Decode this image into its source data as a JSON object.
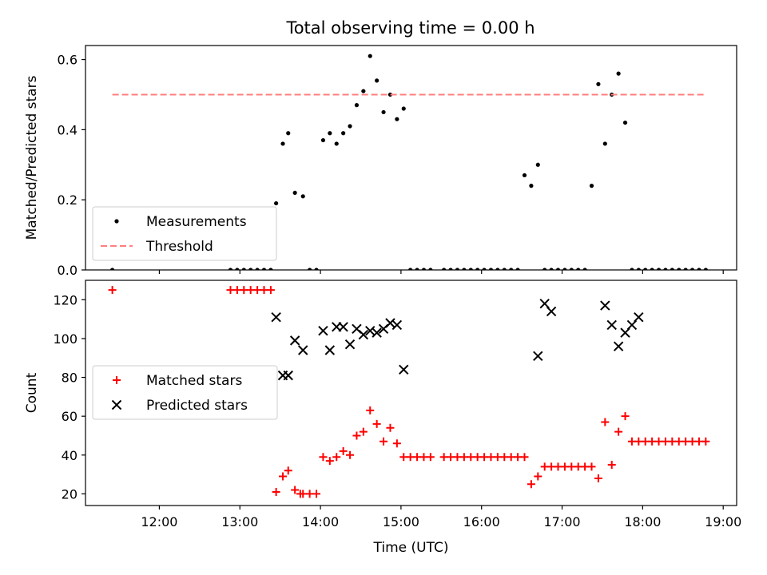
{
  "figure": {
    "title": "Total observing time = 0.00 h"
  },
  "chart_data": [
    {
      "type": "scatter",
      "title": "Total observing time = 0.00 h",
      "xlabel": "",
      "ylabel": "Matched/Predicted stars",
      "xlim": [
        "11:05",
        "19:10"
      ],
      "ylim": [
        0,
        0.64
      ],
      "yticks": [
        0.0,
        0.2,
        0.4,
        0.6
      ],
      "ytick_labels": [
        "0.0",
        "0.2",
        "0.4",
        "0.6"
      ],
      "grid": false,
      "legend_position": "lower-left",
      "series": [
        {
          "name": "Measurements",
          "kind": "scatter",
          "color": "#000000",
          "x": [
            "11:25",
            "12:53",
            "12:58",
            "13:03",
            "13:08",
            "13:13",
            "13:18",
            "13:23",
            "13:27",
            "13:32",
            "13:36",
            "13:41",
            "13:47",
            "13:52",
            "13:57",
            "14:02",
            "14:07",
            "14:12",
            "14:17",
            "14:22",
            "14:27",
            "14:32",
            "14:37",
            "14:42",
            "14:47",
            "14:52",
            "14:57",
            "15:02",
            "15:07",
            "15:12",
            "15:17",
            "15:22",
            "15:32",
            "15:37",
            "15:42",
            "15:47",
            "15:52",
            "15:57",
            "16:02",
            "16:07",
            "16:12",
            "16:17",
            "16:22",
            "16:27",
            "16:32",
            "16:37",
            "16:42",
            "16:47",
            "16:52",
            "16:57",
            "17:02",
            "17:07",
            "17:12",
            "17:17",
            "17:22",
            "17:27",
            "17:32",
            "17:37",
            "17:42",
            "17:47",
            "17:52",
            "17:57",
            "18:02",
            "18:07",
            "18:12",
            "18:17",
            "18:22",
            "18:27",
            "18:32",
            "18:37",
            "18:42",
            "18:47"
          ],
          "y": [
            0.0,
            0.0,
            0.0,
            0.0,
            0.0,
            0.0,
            0.0,
            0.0,
            0.19,
            0.36,
            0.39,
            0.22,
            0.21,
            0.0,
            0.0,
            0.37,
            0.39,
            0.36,
            0.39,
            0.41,
            0.47,
            0.51,
            0.61,
            0.54,
            0.45,
            0.5,
            0.43,
            0.46,
            0.0,
            0.0,
            0.0,
            0.0,
            0.0,
            0.0,
            0.0,
            0.0,
            0.0,
            0.0,
            0.0,
            0.0,
            0.0,
            0.0,
            0.0,
            0.0,
            0.27,
            0.24,
            0.3,
            0.0,
            0.0,
            0.0,
            0.0,
            0.0,
            0.0,
            0.0,
            0.24,
            0.53,
            0.36,
            0.5,
            0.56,
            0.42,
            0.0,
            0.0,
            0.0,
            0.0,
            0.0,
            0.0,
            0.0,
            0.0,
            0.0,
            0.0,
            0.0,
            0.0
          ]
        },
        {
          "name": "Threshold",
          "kind": "line",
          "style": "dashed",
          "color": "#ff7f7f",
          "x": [
            "11:25",
            "18:47"
          ],
          "y": [
            0.5,
            0.5
          ]
        }
      ]
    },
    {
      "type": "scatter",
      "xlabel": "Time (UTC)",
      "ylabel": "Count",
      "xlim": [
        "11:05",
        "19:10"
      ],
      "xticks": [
        "12:00",
        "13:00",
        "14:00",
        "15:00",
        "16:00",
        "17:00",
        "18:00",
        "19:00"
      ],
      "ylim": [
        14,
        130
      ],
      "yticks": [
        20,
        40,
        60,
        80,
        100,
        120
      ],
      "grid": false,
      "legend_position": "center-left",
      "series": [
        {
          "name": "Matched stars",
          "marker": "+",
          "color": "#ff0000",
          "x": [
            "11:25",
            "12:53",
            "12:58",
            "13:03",
            "13:08",
            "13:13",
            "13:18",
            "13:23",
            "13:27",
            "13:32",
            "13:36",
            "13:41",
            "13:45",
            "13:47",
            "13:52",
            "13:57",
            "14:02",
            "14:07",
            "14:12",
            "14:17",
            "14:22",
            "14:27",
            "14:32",
            "14:37",
            "14:42",
            "14:47",
            "14:52",
            "14:57",
            "15:02",
            "15:07",
            "15:12",
            "15:17",
            "15:22",
            "15:32",
            "15:37",
            "15:42",
            "15:47",
            "15:52",
            "15:57",
            "16:02",
            "16:07",
            "16:12",
            "16:17",
            "16:22",
            "16:27",
            "16:32",
            "16:37",
            "16:42",
            "16:47",
            "16:52",
            "16:57",
            "17:02",
            "17:07",
            "17:12",
            "17:17",
            "17:22",
            "17:27",
            "17:32",
            "17:37",
            "17:42",
            "17:47",
            "17:52",
            "17:57",
            "18:02",
            "18:07",
            "18:12",
            "18:17",
            "18:22",
            "18:27",
            "18:32",
            "18:37",
            "18:42",
            "18:47"
          ],
          "y": [
            125,
            125,
            125,
            125,
            125,
            125,
            125,
            125,
            21,
            29,
            32,
            22,
            20,
            20,
            20,
            20,
            39,
            37,
            39,
            42,
            40,
            50,
            52,
            63,
            56,
            47,
            54,
            46,
            39,
            39,
            39,
            39,
            39,
            39,
            39,
            39,
            39,
            39,
            39,
            39,
            39,
            39,
            39,
            39,
            39,
            39,
            25,
            29,
            34,
            34,
            34,
            34,
            34,
            34,
            34,
            34,
            28,
            57,
            35,
            52,
            60,
            47,
            47,
            47,
            47,
            47,
            47,
            47,
            47,
            47,
            47,
            47,
            47
          ]
        },
        {
          "name": "Predicted stars",
          "marker": "x",
          "color": "#000000",
          "x": [
            "13:27",
            "13:32",
            "13:36",
            "13:41",
            "13:47",
            "14:02",
            "14:07",
            "14:12",
            "14:17",
            "14:22",
            "14:27",
            "14:32",
            "14:37",
            "14:42",
            "14:47",
            "14:52",
            "14:57",
            "15:02",
            "16:42",
            "16:47",
            "16:52",
            "17:32",
            "17:37",
            "17:42",
            "17:47",
            "17:52",
            "17:57"
          ],
          "y": [
            111,
            81,
            81,
            99,
            94,
            104,
            94,
            106,
            106,
            97,
            105,
            102,
            104,
            103,
            105,
            108,
            107,
            84,
            91,
            118,
            114,
            117,
            107,
            96,
            103,
            107,
            111
          ]
        }
      ]
    }
  ]
}
